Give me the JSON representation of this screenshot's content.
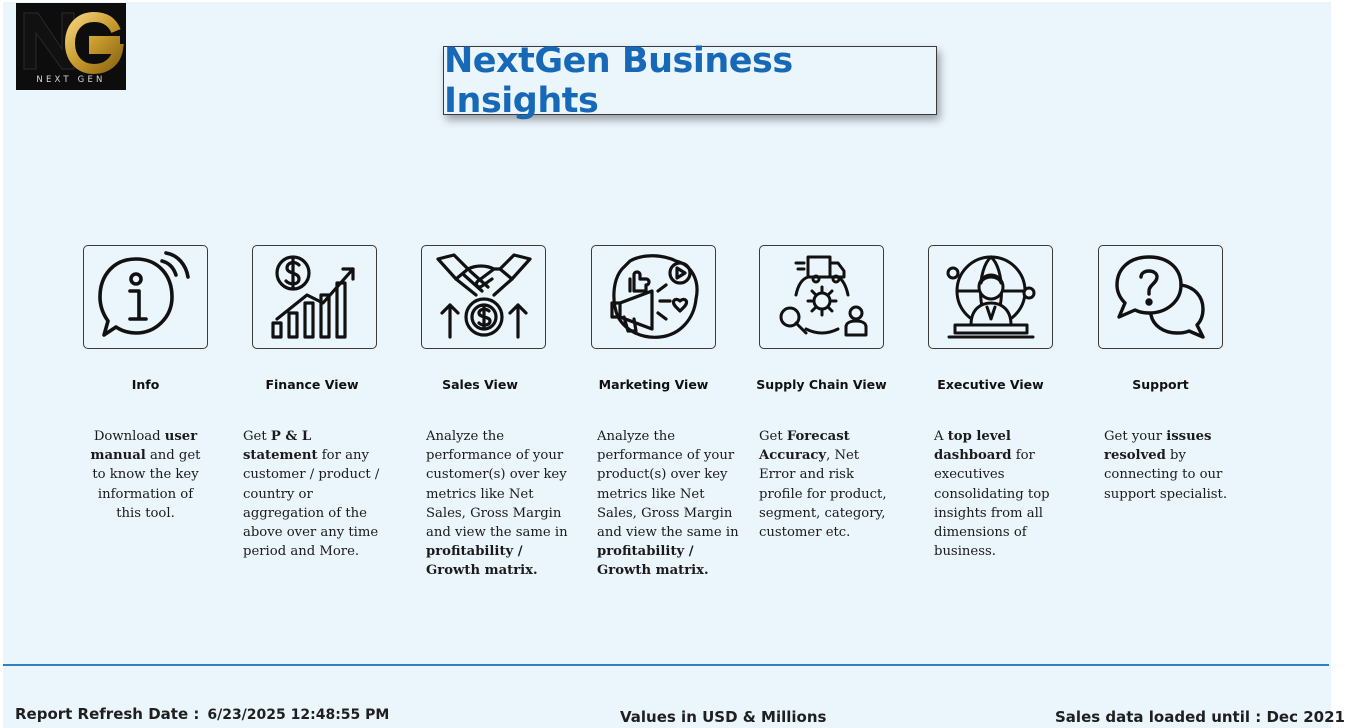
{
  "logo": {
    "caption": "NEXT GEN"
  },
  "header": {
    "title": "NextGen Business Insights"
  },
  "cards": [
    {
      "icon": "info-icon",
      "label": "Info",
      "desc": [
        [
          "Download ",
          false
        ],
        [
          "user manual",
          true
        ],
        [
          " and get to know the key information of this tool.",
          false
        ]
      ]
    },
    {
      "icon": "finance-chart-icon",
      "label": "Finance View",
      "desc": [
        [
          "Get  ",
          false
        ],
        [
          "P & L statement",
          true
        ],
        [
          " for any customer / product / country or aggregation of the above over any time period and More.",
          false
        ]
      ]
    },
    {
      "icon": "handshake-dollar-icon",
      "label": "Sales View",
      "desc": [
        [
          "Analyze the performance of your customer(s) over key metrics like Net Sales, Gross Margin and view the same in ",
          false
        ],
        [
          "profitability / Growth matrix.",
          true
        ]
      ]
    },
    {
      "icon": "megaphone-icon",
      "label": "Marketing View",
      "desc": [
        [
          "Analyze the performance of your product(s) over key metrics like Net Sales, Gross Margin and view the same in ",
          false
        ],
        [
          "profitability / Growth matrix.",
          true
        ]
      ]
    },
    {
      "icon": "supply-chain-icon",
      "label": "Supply Chain View",
      "desc": [
        [
          "Get ",
          false
        ],
        [
          "Forecast Accuracy",
          true
        ],
        [
          ", Net Error and risk profile for product, segment, category, customer etc.",
          false
        ]
      ]
    },
    {
      "icon": "executive-icon",
      "label": "Executive View",
      "desc": [
        [
          "A ",
          false
        ],
        [
          "top level dashboard",
          true
        ],
        [
          " for executives consolidating top insights from all dimensions of business.",
          false
        ]
      ]
    },
    {
      "icon": "support-chat-icon",
      "label": "Support",
      "desc": [
        [
          "Get your ",
          false
        ],
        [
          "issues resolved",
          true
        ],
        [
          " by connecting to our support specialist.",
          false
        ]
      ]
    }
  ],
  "footer": {
    "refresh_label": "Report Refresh Date :",
    "refresh_value": "6/23/2025 12:48:55 PM",
    "units": "Values in USD & Millions",
    "loaded": "Sales data loaded until : Dec 2021"
  }
}
